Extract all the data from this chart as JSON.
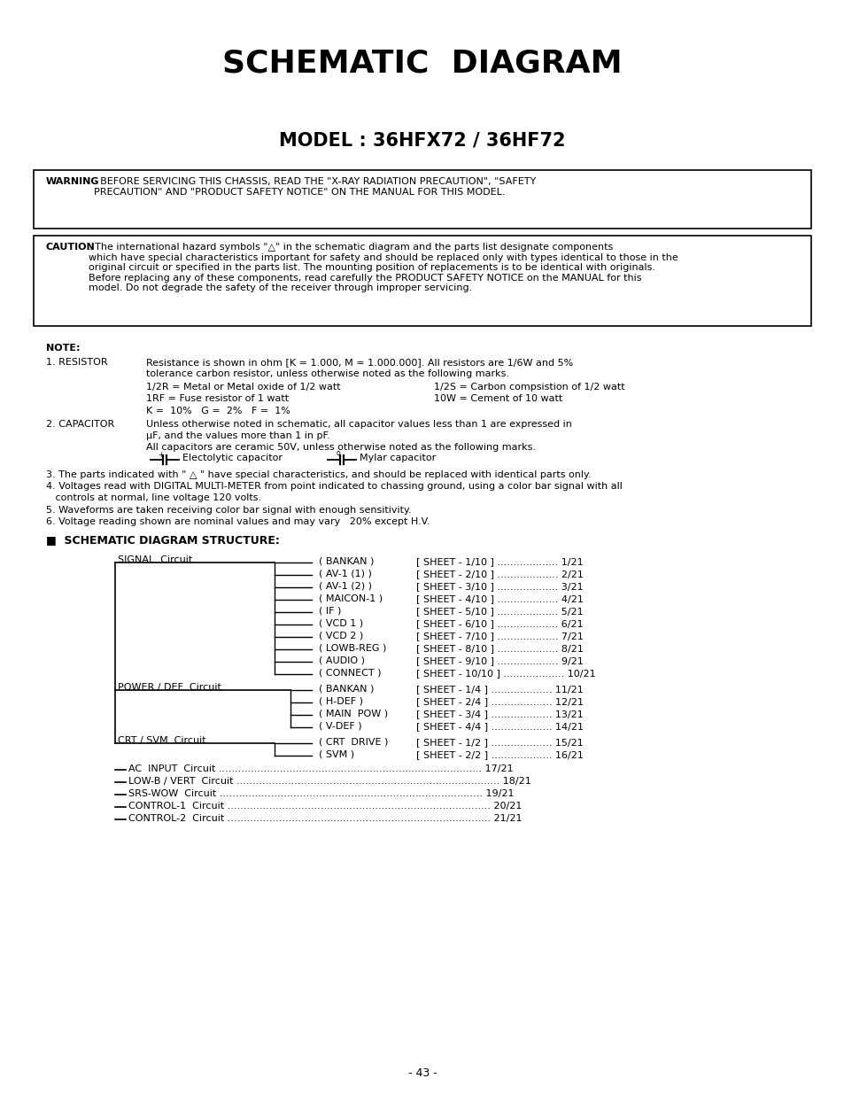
{
  "title": "SCHEMATIC  DIAGRAM",
  "model": "MODEL : 36HFX72 / 36HF72",
  "warning_bold": "WARNING",
  "warning_rest": ": BEFORE SERVICING THIS CHASSIS, READ THE \"X-RAY RADIATION PRECAUTION\", \"SAFETY\nPRECAUTION\" AND \"PRODUCT SAFETY NOTICE\" ON THE MANUAL FOR THIS MODEL.",
  "caution_bold": "CAUTION",
  "caution_rest": ": The international hazard symbols \"△\" in the schematic diagram and the parts list designate components\nwhich have special characteristics important for safety and should be replaced only with types identical to those in the\noriginal circuit or specified in the parts list. The mounting position of replacements is to be identical with originals.\nBefore replacing any of these components, read carefully the PRODUCT SAFETY NOTICE on the MANUAL for this\nmodel. Do not degrade the safety of the receiver through improper servicing.",
  "note_label": "NOTE:",
  "note1_num": "1. RESISTOR",
  "note1_line1": "Resistance is shown in ohm [K = 1.000, M = 1.000.000]. All resistors are 1/6W and 5%",
  "note1_line2": "tolerance carbon resistor, unless otherwise noted as the following marks.",
  "note1_line3a": "1/2R = Metal or Metal oxide of 1/2 watt",
  "note1_line3b": "1/2S = Carbon compsistion of 1/2 watt",
  "note1_line4a": "1RF = Fuse resistor of 1 watt",
  "note1_line4b": "10W = Cement of 10 watt",
  "note1_line5": "K =  10%   G =  2%   F =  1%",
  "note2_num": "2. CAPACITOR",
  "note2_line1": "Unless otherwise noted in schematic, all capacitor values less than 1 are expressed in",
  "note2_line2": "μF, and the values more than 1 in pF.",
  "note2_line3": "All capacitors are ceramic 50V, unless otherwise noted as the following marks.",
  "note2_cap1": "Electolytic capacitor",
  "note2_cap2": "Mylar capacitor",
  "note3": "3. The parts indicated with \" △ \" have special characteristics, and should be replaced with identical parts only.",
  "note4a": "4. Voltages read with DIGITAL MULTI-METER from point indicated to chassing ground, using a color bar signal with all",
  "note4b": "   controls at normal, line voltage 120 volts.",
  "note5": "5. Waveforms are taken receiving color bar signal with enough sensitivity.",
  "note6": "6. Voltage reading shown are nominal values and may vary   20% except H.V.",
  "structure_label": "■  SCHEMATIC DIAGRAM STRUCTURE:",
  "signal_circuit": "SIGNAL  Circuit",
  "signal_items": [
    [
      "( BANKAN )",
      "[ SHEET - 1/10 ]",
      "1/21"
    ],
    [
      "( AV-1 (1) )",
      "[ SHEET - 2/10 ]",
      "2/21"
    ],
    [
      "( AV-1 (2) )",
      "[ SHEET - 3/10 ]",
      "3/21"
    ],
    [
      "( MAICON-1 )",
      "[ SHEET - 4/10 ]",
      "4/21"
    ],
    [
      "( IF )",
      "[ SHEET - 5/10 ]",
      "5/21"
    ],
    [
      "( VCD 1 )",
      "[ SHEET - 6/10 ]",
      "6/21"
    ],
    [
      "( VCD 2 )",
      "[ SHEET - 7/10 ]",
      "7/21"
    ],
    [
      "( LOWB-REG )",
      "[ SHEET - 8/10 ]",
      "8/21"
    ],
    [
      "( AUDIO )",
      "[ SHEET - 9/10 ]",
      "9/21"
    ],
    [
      "( CONNECT )",
      "[ SHEET - 10/10 ]",
      "10/21"
    ]
  ],
  "power_circuit": "POWER / DEF  Circuit",
  "power_items": [
    [
      "( BANKAN )",
      "[ SHEET - 1/4 ]",
      "11/21"
    ],
    [
      "( H-DEF )",
      "[ SHEET - 2/4 ]",
      "12/21"
    ],
    [
      "( MAIN  POW )",
      "[ SHEET - 3/4 ]",
      "13/21"
    ],
    [
      "( V-DEF )",
      "[ SHEET - 4/4 ]",
      "14/21"
    ]
  ],
  "crt_circuit": "CRT / SVM  Circuit",
  "crt_items": [
    [
      "( CRT  DRIVE )",
      "[ SHEET - 1/2 ]",
      "15/21"
    ],
    [
      "( SVM )",
      "[ SHEET - 2/2 ]",
      "16/21"
    ]
  ],
  "standalone": [
    [
      "AC  INPUT  Circuit",
      "17/21"
    ],
    [
      "LOW-B / VERT  Circuit",
      "18/21"
    ],
    [
      "SRS-WOW  Circuit",
      "19/21"
    ],
    [
      "CONTROL-1  Circuit",
      "20/21"
    ],
    [
      "CONTROL-2  Circuit",
      "21/21"
    ]
  ],
  "page_number": "- 43 -",
  "bg_color": "#ffffff",
  "text_color": "#000000"
}
